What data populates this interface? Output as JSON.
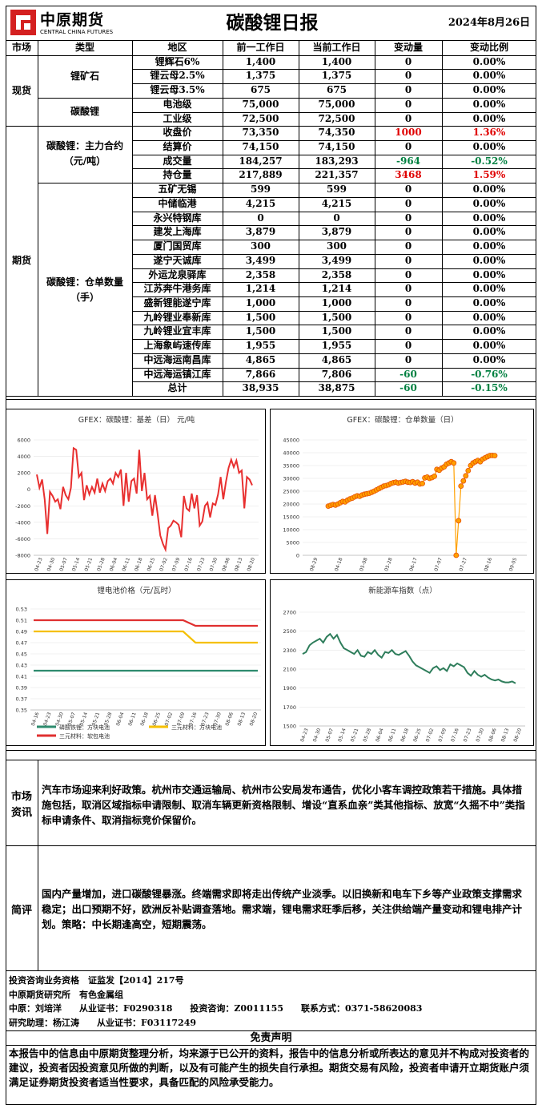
{
  "header": {
    "logo_cn": "中原期货",
    "logo_en": "CENTRAL CHINA FUTURES",
    "title": "碳酸锂日报",
    "date": "2024年8月26日"
  },
  "table": {
    "columns": [
      "市场",
      "类型",
      "地区",
      "前一工作日",
      "当前工作日",
      "变动量",
      "变动比例"
    ],
    "spot": {
      "market": "现货",
      "ore_type": "锂矿石",
      "ore_rows": [
        {
          "name": "锂辉石6%",
          "prev": "1,400",
          "cur": "1,400",
          "chg": "0",
          "pct": "0.00%"
        },
        {
          "name": "锂云母2.5%",
          "prev": "1,375",
          "cur": "1,375",
          "chg": "0",
          "pct": "0.00%"
        },
        {
          "name": "锂云母3.5%",
          "prev": "675",
          "cur": "675",
          "chg": "0",
          "pct": "0.00%"
        }
      ],
      "carb_type": "碳酸锂",
      "carb_rows": [
        {
          "name": "电池级",
          "prev": "75,000",
          "cur": "75,000",
          "chg": "0",
          "pct": "0.00%"
        },
        {
          "name": "工业级",
          "prev": "72,500",
          "cur": "72,500",
          "chg": "0",
          "pct": "0.00%"
        }
      ]
    },
    "futures": {
      "market": "期货",
      "main_type": "碳酸锂：主力合约（元/吨）",
      "main_rows": [
        {
          "name": "收盘价",
          "prev": "73,350",
          "cur": "74,350",
          "chg": "1000",
          "pct": "1.36%",
          "color": "red"
        },
        {
          "name": "结算价",
          "prev": "74,150",
          "cur": "74,150",
          "chg": "0",
          "pct": "0.00%",
          "color": ""
        },
        {
          "name": "成交量",
          "prev": "184,257",
          "cur": "183,293",
          "chg": "-964",
          "pct": "-0.52%",
          "color": "green"
        },
        {
          "name": "持仓量",
          "prev": "217,889",
          "cur": "221,357",
          "chg": "3468",
          "pct": "1.59%",
          "color": "red"
        }
      ],
      "wh_type": "碳酸锂：仓单数量（手）",
      "wh_rows": [
        {
          "name": "五矿无锡",
          "prev": "599",
          "cur": "599",
          "chg": "0",
          "pct": "0.00%",
          "color": ""
        },
        {
          "name": "中储临港",
          "prev": "4,215",
          "cur": "4,215",
          "chg": "0",
          "pct": "0.00%",
          "color": ""
        },
        {
          "name": "永兴特钢库",
          "prev": "0",
          "cur": "0",
          "chg": "0",
          "pct": "0.00%",
          "color": ""
        },
        {
          "name": "建发上海库",
          "prev": "3,879",
          "cur": "3,879",
          "chg": "0",
          "pct": "0.00%",
          "color": ""
        },
        {
          "name": "厦门国贸库",
          "prev": "300",
          "cur": "300",
          "chg": "0",
          "pct": "0.00%",
          "color": ""
        },
        {
          "name": "遂宁天诚库",
          "prev": "3,499",
          "cur": "3,499",
          "chg": "0",
          "pct": "0.00%",
          "color": ""
        },
        {
          "name": "外运龙泉驿库",
          "prev": "2,358",
          "cur": "2,358",
          "chg": "0",
          "pct": "0.00%",
          "color": ""
        },
        {
          "name": "江苏奔牛港务库",
          "prev": "1,214",
          "cur": "1,214",
          "chg": "0",
          "pct": "0.00%",
          "color": ""
        },
        {
          "name": "盛新锂能遂宁库",
          "prev": "1,000",
          "cur": "1,000",
          "chg": "0",
          "pct": "0.00%",
          "color": ""
        },
        {
          "name": "九岭锂业奉新库",
          "prev": "1,500",
          "cur": "1,500",
          "chg": "0",
          "pct": "0.00%",
          "color": ""
        },
        {
          "name": "九岭锂业宜丰库",
          "prev": "1,500",
          "cur": "1,500",
          "chg": "0",
          "pct": "0.00%",
          "color": ""
        },
        {
          "name": "上海象屿速传库",
          "prev": "1,955",
          "cur": "1,955",
          "chg": "0",
          "pct": "0.00%",
          "color": ""
        },
        {
          "name": "中远海运南昌库",
          "prev": "4,865",
          "cur": "4,865",
          "chg": "0",
          "pct": "0.00%",
          "color": ""
        },
        {
          "name": "中远海运镇江库",
          "prev": "7,866",
          "cur": "7,806",
          "chg": "-60",
          "pct": "-0.76%",
          "color": "green"
        },
        {
          "name": "总计",
          "prev": "38,935",
          "cur": "38,875",
          "chg": "-60",
          "pct": "-0.15%",
          "color": "green"
        }
      ]
    }
  },
  "chart_data": [
    {
      "type": "line",
      "title": "GFEX：碳酸锂：基差（日） 元/吨",
      "yticks": [
        "6000",
        "4000",
        "2000",
        "0",
        "-2000",
        "-4000",
        "-6000",
        "-8000"
      ],
      "ylim": [
        -8000,
        6000
      ],
      "xticks": [
        "04-23",
        "04-30",
        "05-07",
        "05-14",
        "05-21",
        "05-28",
        "06-04",
        "06-11",
        "06-18",
        "06-25",
        "07-02",
        "07-09",
        "07-16",
        "07-23",
        "07-30",
        "08-06",
        "08-13",
        "08-20"
      ],
      "color": "#e83030",
      "values": [
        1800,
        200,
        1200,
        -1200,
        -5400,
        -300,
        -800,
        -1500,
        -1200,
        -2400,
        300,
        -700,
        -1200,
        200,
        5000,
        4800,
        1500,
        2000,
        -1300,
        500,
        -600,
        300,
        -400,
        1300,
        -400,
        700,
        -200,
        1000,
        1300,
        700,
        2000,
        1500,
        2400,
        -2000,
        2000,
        -1500,
        1000,
        1300,
        -500,
        4800,
        -200,
        2000,
        -1200,
        -800,
        -3200,
        -700,
        -3000,
        -5600,
        -6600,
        -7300,
        -4700,
        -4400,
        -3800,
        -4000,
        -4300,
        -5800,
        -800,
        -2300,
        -2600,
        -500,
        -2300,
        -700,
        -4400,
        -3900,
        -2000,
        -1600,
        -3400,
        -1700,
        -1900,
        -600,
        1500,
        -1200,
        900,
        2600,
        3600,
        2700,
        3500,
        2000,
        2300,
        -2300,
        1500,
        1200,
        500
      ]
    },
    {
      "type": "scatter",
      "title": "GFEX：碳酸锂：仓单数量（日）",
      "yticks": [
        "45000",
        "40000",
        "35000",
        "30000",
        "25000",
        "20000",
        "15000",
        "10000",
        "5000",
        "0"
      ],
      "ylim": [
        0,
        45000
      ],
      "xticks": [
        "08-29",
        "04-18",
        "05-08",
        "05-28",
        "06-17",
        "07-07",
        "07-27",
        "08-16",
        "09-05"
      ],
      "color": "#ffa000",
      "values": [
        19200,
        19500,
        19800,
        19600,
        20000,
        20500,
        21000,
        20800,
        21500,
        22000,
        22300,
        22800,
        23200,
        23000,
        23500,
        23800,
        24000,
        24200,
        24600,
        25000,
        25500,
        26000,
        26500,
        27000,
        27200,
        27500,
        28000,
        28300,
        28500,
        28200,
        28400,
        28600,
        28800,
        28500,
        28400,
        28700,
        28200,
        28500,
        27800,
        28000,
        30200,
        30500,
        30000,
        30300,
        30800,
        33500,
        33200,
        34000,
        34500,
        35500,
        36000,
        36500,
        36000,
        0,
        13500,
        27000,
        29000,
        31000,
        33000,
        35000,
        36000,
        36500,
        37000,
        36500,
        37500,
        38000,
        38500,
        38900,
        38935,
        38875
      ]
    },
    {
      "type": "line",
      "title": "锂电池价格（元/瓦时）",
      "yticks": [
        "0.53",
        "0.51",
        "0.49",
        "0.47",
        "0.45",
        "0.43",
        "0.41",
        "0.39",
        "0.37",
        "0.35"
      ],
      "ylim": [
        0.35,
        0.53
      ],
      "xticks": [
        "04-16",
        "04-23",
        "04-30",
        "05-07",
        "05-14",
        "05-21",
        "05-28",
        "06-04",
        "06-11",
        "06-18",
        "06-25",
        "07-02",
        "07-09",
        "07-16",
        "07-23",
        "07-30",
        "08-06",
        "08-13",
        "08-20"
      ],
      "series": [
        {
          "name": "磷酸铁锂：方块电池",
          "color": "#2e8b6e",
          "values": [
            0.42,
            0.42,
            0.42,
            0.42,
            0.42,
            0.42,
            0.42,
            0.42,
            0.42,
            0.42,
            0.42,
            0.42,
            0.42,
            0.42,
            0.42,
            0.42,
            0.42,
            0.42,
            0.42
          ]
        },
        {
          "name": "三元材料：方块电池",
          "color": "#f5c000",
          "values": [
            0.49,
            0.49,
            0.49,
            0.49,
            0.49,
            0.49,
            0.49,
            0.49,
            0.49,
            0.49,
            0.49,
            0.49,
            0.49,
            0.47,
            0.47,
            0.47,
            0.47,
            0.47,
            0.47
          ]
        },
        {
          "name": "三元材料：软包电池",
          "color": "#e03030",
          "values": [
            0.51,
            0.51,
            0.51,
            0.51,
            0.51,
            0.51,
            0.51,
            0.51,
            0.51,
            0.51,
            0.51,
            0.51,
            0.51,
            0.5,
            0.5,
            0.5,
            0.5,
            0.5,
            0.5
          ]
        }
      ]
    },
    {
      "type": "line",
      "title": "新能源车指数（点）",
      "yticks": [
        "2700",
        "2500",
        "2300",
        "2100",
        "1900",
        "1700",
        "1500"
      ],
      "ylim": [
        1500,
        2700
      ],
      "xticks": [
        "04-23",
        "04-30",
        "05-07",
        "05-14",
        "05-21",
        "05-28",
        "06-04",
        "06-11",
        "06-18",
        "06-25",
        "07-02",
        "07-09",
        "07-16",
        "07-23",
        "07-30",
        "08-06",
        "08-13",
        "08-20"
      ],
      "color": "#2e7d5b",
      "values": [
        2260,
        2280,
        2350,
        2380,
        2400,
        2420,
        2380,
        2440,
        2470,
        2420,
        2460,
        2380,
        2320,
        2300,
        2280,
        2260,
        2300,
        2240,
        2230,
        2280,
        2260,
        2300,
        2250,
        2220,
        2280,
        2270,
        2300,
        2260,
        2250,
        2270,
        2290,
        2240,
        2180,
        2140,
        2120,
        2100,
        2080,
        2060,
        2110,
        2130,
        2090,
        2110,
        2080,
        2150,
        2130,
        2160,
        2140,
        2120,
        2060,
        2030,
        2080,
        2040,
        2020,
        2040,
        2010,
        1990,
        1980,
        1990,
        1970,
        1960,
        1960,
        1970,
        1950
      ]
    }
  ],
  "market_info": {
    "label": "市场资讯",
    "text": "汽车市场迎来利好政策。杭州市交通运输局、杭州市公安局发布通告，优化小客车调控政策若干措施。具体措施包括，取消区域指标申请限制、取消车辆更新资格限制、增设“直系血亲”类其他指标、放宽“久摇不中”类指标申请条件、取消指标竞价保留价。"
  },
  "commentary": {
    "label": "简评",
    "text": "国内产量增加，进口碳酸锂暴涨。终端需求即将走出传统产业淡季。以旧换新和电车下乡等产业政策支撑需求稳定；出口预期不好，欧洲反补贴调查落地。需求端，锂电需求旺季后移，关注供给端产量变动和锂电排产计划。策略：中长期逢高空，短期震荡。"
  },
  "footer": {
    "line1": "投资咨询业务资格　证监发【2014】217号",
    "line2": "中原期货研究所　有色金属组",
    "line3_a": "中原：刘培洋　　从业证书：F0290318　　投资咨询：Z0011155　　联系方式：0371-58620083",
    "line4": "研究助理：杨江涛　　从业证书：F03117249",
    "disclaimer_title": "免责声明",
    "disclaimer": "本报告中的信息由中原期货整理分析，均来源于已公开的资料，报告中的信息分析或所表达的意见并不构成对投资者的建议，投资者因投资意见所做的判断，以及有可能产生的损失自行承担。期货交易有风险，投资者申请开立期货账户须满足证券期货投资者适当性要求，具备匹配的风险承受能力。"
  }
}
